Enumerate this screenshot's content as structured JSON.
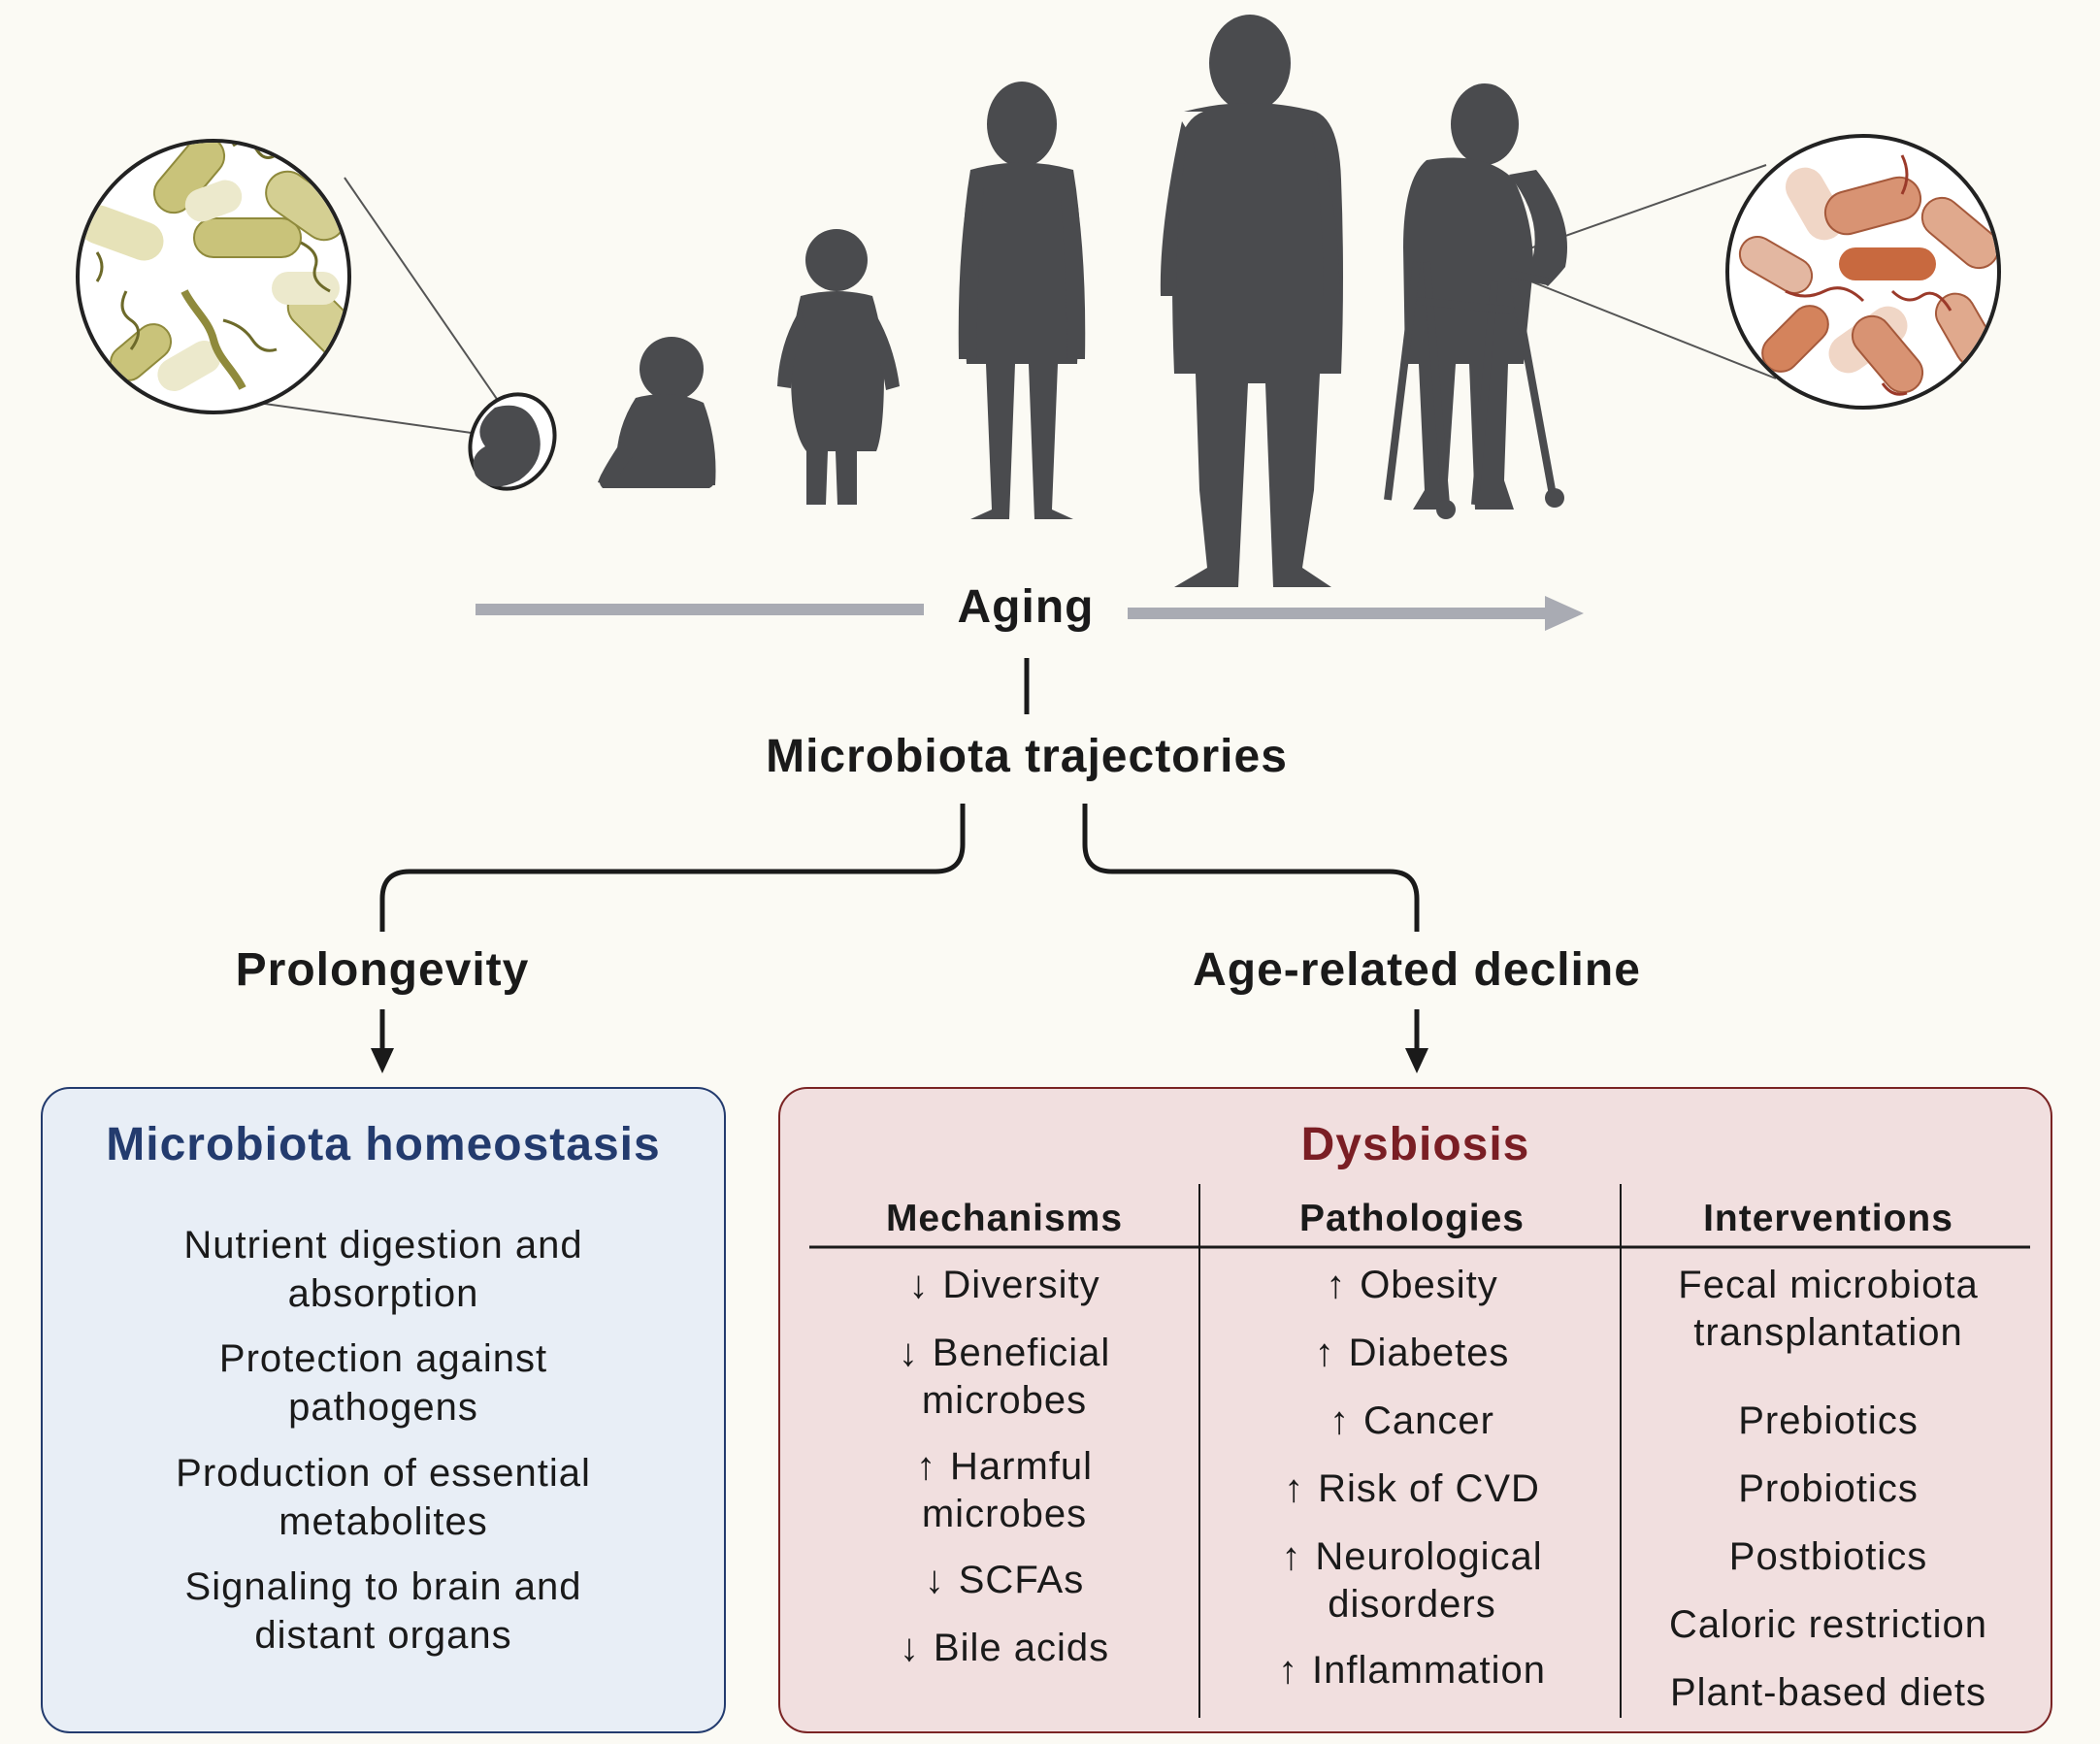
{
  "colors": {
    "background": "#fbfaf4",
    "silhouette": "#4a4b4e",
    "timeline_arrow": "#a9abb3",
    "homeostasis_title": "#233b6e",
    "homeostasis_fill": "#e8eef6",
    "dysbiosis_title": "#7a1e24",
    "dysbiosis_fill": "#f1dfdf",
    "healthy_bacteria": "#c9c37a",
    "aged_bacteria": "#d89373"
  },
  "timeline": {
    "label": "Aging"
  },
  "trajectory_label": "Microbiota trajectories",
  "branches": {
    "left": "Prolongevity",
    "right": "Age-related decline"
  },
  "homeostasis": {
    "title": "Microbiota homeostasis",
    "items": [
      "Nutrient digestion and\nabsorption",
      "Protection against\npathogens",
      "Production of essential\nmetabolites",
      "Signaling to brain and\ndistant organs"
    ]
  },
  "dysbiosis": {
    "title": "Dysbiosis",
    "columns": [
      {
        "header": "Mechanisms",
        "items": [
          {
            "dir": "down",
            "text": "Diversity"
          },
          {
            "dir": "down",
            "text": "Beneficial\nmicrobes"
          },
          {
            "dir": "up",
            "text": "Harmful\nmicrobes"
          },
          {
            "dir": "down",
            "text": "SCFAs"
          },
          {
            "dir": "down",
            "text": "Bile acids"
          }
        ]
      },
      {
        "header": "Pathologies",
        "items": [
          {
            "dir": "up",
            "text": "Obesity"
          },
          {
            "dir": "up",
            "text": "Diabetes"
          },
          {
            "dir": "up",
            "text": "Cancer"
          },
          {
            "dir": "up",
            "text": "Risk of CVD"
          },
          {
            "dir": "up",
            "text": "Neurological\ndisorders"
          },
          {
            "dir": "up",
            "text": "Inflammation"
          }
        ]
      },
      {
        "header": "Interventions",
        "items": [
          {
            "dir": "none",
            "text": "Fecal microbiota\ntransplantation"
          },
          {
            "dir": "none",
            "text": "Prebiotics"
          },
          {
            "dir": "none",
            "text": "Probiotics"
          },
          {
            "dir": "none",
            "text": "Postbiotics"
          },
          {
            "dir": "none",
            "text": "Caloric restriction"
          },
          {
            "dir": "none",
            "text": "Plant-based diets"
          }
        ]
      }
    ]
  }
}
